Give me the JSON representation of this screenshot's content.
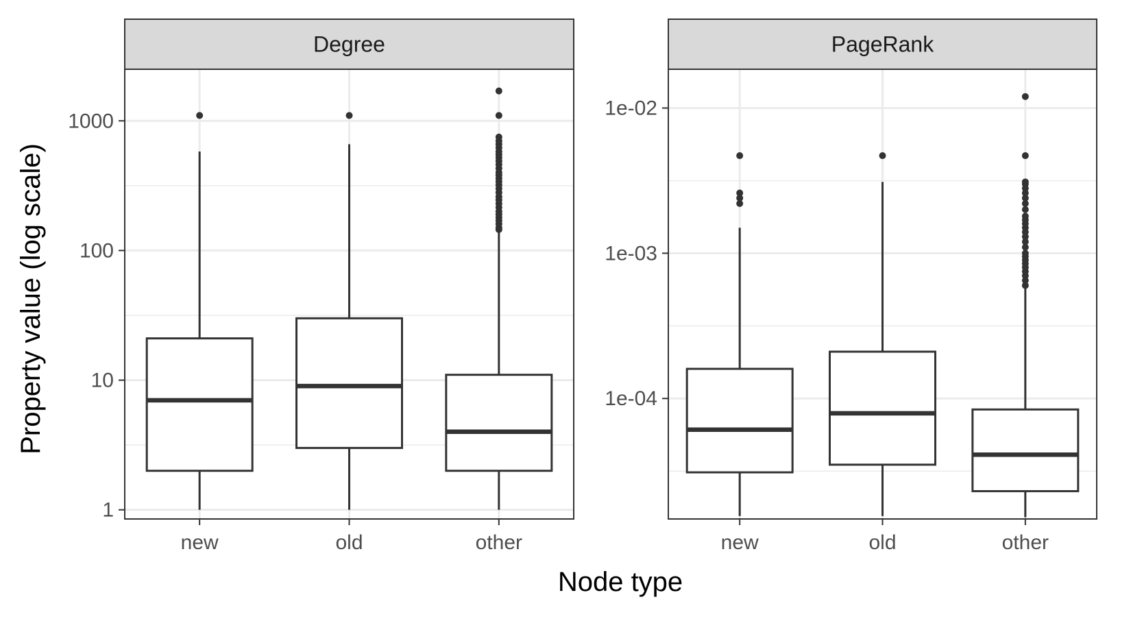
{
  "chart_data": {
    "type": "boxplot",
    "xlabel": "Node type",
    "ylabel": "Property value (log scale)",
    "yscale": "log",
    "categories": [
      "new",
      "old",
      "other"
    ],
    "panels": [
      {
        "name": "Degree",
        "ylim": [
          0.85,
          2500
        ],
        "major_ticks": [
          1,
          10,
          100,
          1000
        ],
        "major_tick_labels": [
          "1",
          "10",
          "100",
          "1000"
        ],
        "minor_gridlines": [
          3.16,
          31.6,
          316
        ],
        "boxes": [
          {
            "category": "new",
            "whisker_low": 1,
            "q1": 2,
            "median": 7,
            "q3": 21,
            "whisker_high": 580,
            "outliers": [
              1100
            ]
          },
          {
            "category": "old",
            "whisker_low": 1,
            "q1": 3,
            "median": 9,
            "q3": 30,
            "whisker_high": 660,
            "outliers": [
              1100
            ]
          },
          {
            "category": "other",
            "whisker_low": 1,
            "q1": 2,
            "median": 4,
            "q3": 11,
            "whisker_high": 140,
            "outliers": [
              145,
              150,
              160,
              170,
              180,
              190,
              200,
              215,
              230,
              245,
              260,
              280,
              300,
              320,
              340,
              360,
              380,
              400,
              430,
              460,
              490,
              520,
              550,
              580,
              620,
              660,
              700,
              750,
              1100,
              1700
            ]
          }
        ]
      },
      {
        "name": "PageRank",
        "ylim": [
          1.48e-05,
          0.0185
        ],
        "major_ticks": [
          0.0001,
          0.001,
          0.01
        ],
        "major_tick_labels": [
          "1e-04",
          "1e-03",
          "1e-02"
        ],
        "minor_gridlines": [
          3.16e-05,
          0.000316,
          0.00316
        ],
        "boxes": [
          {
            "category": "new",
            "whisker_low": 1.55e-05,
            "q1": 3.1e-05,
            "median": 6.1e-05,
            "q3": 0.00016,
            "whisker_high": 0.0015,
            "outliers": [
              0.0022,
              0.0024,
              0.0026,
              0.0047
            ]
          },
          {
            "category": "old",
            "whisker_low": 1.55e-05,
            "q1": 3.5e-05,
            "median": 7.9e-05,
            "q3": 0.00021,
            "whisker_high": 0.0031,
            "outliers": [
              0.0047
            ]
          },
          {
            "category": "other",
            "whisker_low": 1.52e-05,
            "q1": 2.3e-05,
            "median": 4.1e-05,
            "q3": 8.4e-05,
            "whisker_high": 0.00058,
            "outliers": [
              0.0006,
              0.00065,
              0.0007,
              0.00075,
              0.0008,
              0.00085,
              0.0009,
              0.00095,
              0.001,
              0.0011,
              0.0012,
              0.0013,
              0.0014,
              0.0015,
              0.0016,
              0.0017,
              0.0018,
              0.002,
              0.0022,
              0.0024,
              0.0026,
              0.0028,
              0.003,
              0.0031,
              0.0047,
              0.012
            ]
          }
        ]
      }
    ],
    "grid": true,
    "colors": {
      "box_stroke": "#333333",
      "box_fill": "#ffffff",
      "grid": "#ebebeb",
      "strip_fill": "#d9d9d9",
      "panel_border": "#333333"
    }
  }
}
